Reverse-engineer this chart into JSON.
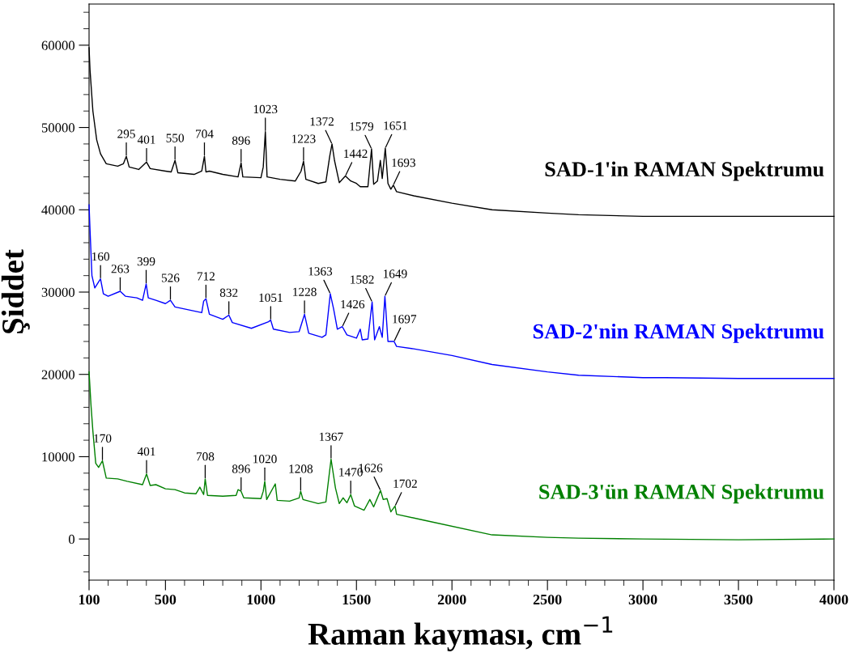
{
  "chart_data": {
    "type": "line",
    "xlabel": "Raman kayması, cm$^{−1}$",
    "ylabel": "Şiddet",
    "xlim": [
      100,
      4000
    ],
    "xticks": [
      100,
      500,
      1000,
      1500,
      2000,
      2500,
      3000,
      3500,
      4000
    ],
    "ylim": [
      -5000,
      65000
    ],
    "yticks": [
      0,
      10000,
      20000,
      30000,
      40000,
      50000,
      60000
    ],
    "grid": false,
    "legend": false,
    "marker": "none",
    "line_style": "solid",
    "series": [
      {
        "name": "SAD-1'in RAMAN Spektrumu",
        "color": "#000000",
        "x": [
          100,
          105,
          120,
          140,
          160,
          190,
          250,
          280,
          295,
          310,
          360,
          401,
          420,
          500,
          530,
          550,
          565,
          650,
          690,
          704,
          712,
          730,
          800,
          880,
          896,
          905,
          1000,
          1012,
          1023,
          1032,
          1100,
          1180,
          1210,
          1223,
          1235,
          1300,
          1340,
          1360,
          1372,
          1385,
          1410,
          1442,
          1470,
          1500,
          1520,
          1560,
          1579,
          1590,
          1610,
          1625,
          1635,
          1651,
          1665,
          1680,
          1693,
          1710,
          1800,
          2000,
          2210,
          2500,
          2663,
          3000,
          3117,
          3500,
          4000
        ],
        "values": [
          59700,
          57000,
          52000,
          48500,
          46800,
          45600,
          45300,
          45600,
          46500,
          45200,
          44900,
          45800,
          45000,
          44700,
          44600,
          46000,
          44500,
          44300,
          44700,
          46500,
          44600,
          44700,
          44300,
          44000,
          45700,
          44000,
          43900,
          45200,
          49500,
          44000,
          43700,
          43500,
          44700,
          45900,
          43700,
          43200,
          43400,
          46500,
          48000,
          46000,
          43300,
          44100,
          43500,
          43200,
          42800,
          42800,
          47400,
          43100,
          43500,
          46000,
          43800,
          47500,
          43200,
          42500,
          43000,
          42200,
          41700,
          40800,
          40000,
          39600,
          39400,
          39200,
          39200,
          39200,
          39200
        ]
      },
      {
        "name": "SAD-2'nin RAMAN Spektrumu",
        "color": "#0000ff",
        "x": [
          100,
          105,
          115,
          130,
          160,
          175,
          200,
          263,
          290,
          350,
          380,
          399,
          410,
          450,
          500,
          526,
          550,
          650,
          690,
          700,
          712,
          730,
          800,
          832,
          850,
          950,
          1040,
          1051,
          1065,
          1150,
          1200,
          1228,
          1250,
          1320,
          1340,
          1363,
          1380,
          1400,
          1426,
          1450,
          1500,
          1520,
          1530,
          1560,
          1582,
          1595,
          1620,
          1635,
          1649,
          1665,
          1697,
          1710,
          1800,
          2000,
          2210,
          2500,
          2663,
          3000,
          3117,
          3500,
          4000
        ],
        "values": [
          40600,
          37600,
          32000,
          30500,
          31600,
          29800,
          29500,
          30100,
          29500,
          29300,
          29000,
          31000,
          29300,
          29000,
          28600,
          29000,
          28200,
          27700,
          27500,
          28900,
          29200,
          27300,
          26700,
          27200,
          26300,
          25600,
          26400,
          26600,
          25500,
          25100,
          25200,
          27300,
          25000,
          24500,
          24800,
          29800,
          28000,
          25500,
          25800,
          24800,
          24400,
          25500,
          24200,
          24300,
          28800,
          24200,
          25800,
          24500,
          29500,
          24000,
          24000,
          23400,
          23100,
          22300,
          21200,
          20300,
          19900,
          19600,
          19600,
          19500,
          19500
        ]
      },
      {
        "name": "SAD-3'ün RAMAN Spektrumu",
        "color": "#008000",
        "x": [
          100,
          110,
          120,
          135,
          150,
          170,
          190,
          250,
          300,
          380,
          401,
          420,
          450,
          500,
          550,
          600,
          660,
          680,
          700,
          708,
          720,
          800,
          870,
          880,
          896,
          910,
          1000,
          1012,
          1020,
          1030,
          1075,
          1085,
          1150,
          1200,
          1208,
          1220,
          1300,
          1340,
          1367,
          1390,
          1410,
          1430,
          1450,
          1470,
          1490,
          1540,
          1570,
          1590,
          1626,
          1640,
          1660,
          1680,
          1702,
          1710,
          1850,
          2210,
          2500,
          2663,
          3000,
          3500,
          4000
        ],
        "values": [
          20300,
          16300,
          13100,
          9200,
          8700,
          9500,
          7400,
          7300,
          7000,
          6600,
          7900,
          6500,
          6600,
          6100,
          6000,
          5600,
          5500,
          6300,
          5400,
          7300,
          5300,
          5200,
          5300,
          6000,
          5800,
          5000,
          4900,
          5800,
          7000,
          4800,
          6700,
          4700,
          4600,
          5000,
          5800,
          4800,
          4300,
          4500,
          9700,
          6200,
          4300,
          5000,
          4400,
          5400,
          4000,
          3500,
          4800,
          3900,
          5900,
          4800,
          4900,
          3300,
          4000,
          3000,
          2300,
          500,
          200,
          100,
          0,
          -100,
          0
        ]
      }
    ],
    "annotations": [
      {
        "text": "295",
        "x": 295,
        "y": 46500
      },
      {
        "text": "401",
        "x": 401,
        "y": 45800
      },
      {
        "text": "550",
        "x": 550,
        "y": 46000
      },
      {
        "text": "704",
        "x": 704,
        "y": 46500
      },
      {
        "text": "896",
        "x": 896,
        "y": 45700
      },
      {
        "text": "1023",
        "x": 1023,
        "y": 49500
      },
      {
        "text": "1223",
        "x": 1223,
        "y": 45900
      },
      {
        "text": "1372",
        "x": 1372,
        "y": 48000
      },
      {
        "text": "1442",
        "x": 1442,
        "y": 44100
      },
      {
        "text": "1579",
        "x": 1579,
        "y": 47400
      },
      {
        "text": "1651",
        "x": 1651,
        "y": 47500
      },
      {
        "text": "1693",
        "x": 1693,
        "y": 43000
      },
      {
        "text": "160",
        "x": 160,
        "y": 31600
      },
      {
        "text": "263",
        "x": 263,
        "y": 30100
      },
      {
        "text": "399",
        "x": 399,
        "y": 31000
      },
      {
        "text": "526",
        "x": 526,
        "y": 29000
      },
      {
        "text": "712",
        "x": 712,
        "y": 29200
      },
      {
        "text": "832",
        "x": 832,
        "y": 27200
      },
      {
        "text": "1051",
        "x": 1051,
        "y": 26600
      },
      {
        "text": "1228",
        "x": 1228,
        "y": 27300
      },
      {
        "text": "1363",
        "x": 1363,
        "y": 29800
      },
      {
        "text": "1426",
        "x": 1426,
        "y": 25800
      },
      {
        "text": "1582",
        "x": 1582,
        "y": 28800
      },
      {
        "text": "1649",
        "x": 1649,
        "y": 29500
      },
      {
        "text": "1697",
        "x": 1697,
        "y": 24000
      },
      {
        "text": "170",
        "x": 170,
        "y": 9500
      },
      {
        "text": "401",
        "x": 401,
        "y": 7900
      },
      {
        "text": "708",
        "x": 708,
        "y": 7300
      },
      {
        "text": "896",
        "x": 896,
        "y": 5800
      },
      {
        "text": "1020",
        "x": 1020,
        "y": 7000
      },
      {
        "text": "1208",
        "x": 1208,
        "y": 5800
      },
      {
        "text": "1367",
        "x": 1367,
        "y": 9700
      },
      {
        "text": "1470",
        "x": 1470,
        "y": 5400
      },
      {
        "text": "1626",
        "x": 1626,
        "y": 5900
      },
      {
        "text": "1702",
        "x": 1702,
        "y": 4000
      }
    ]
  }
}
